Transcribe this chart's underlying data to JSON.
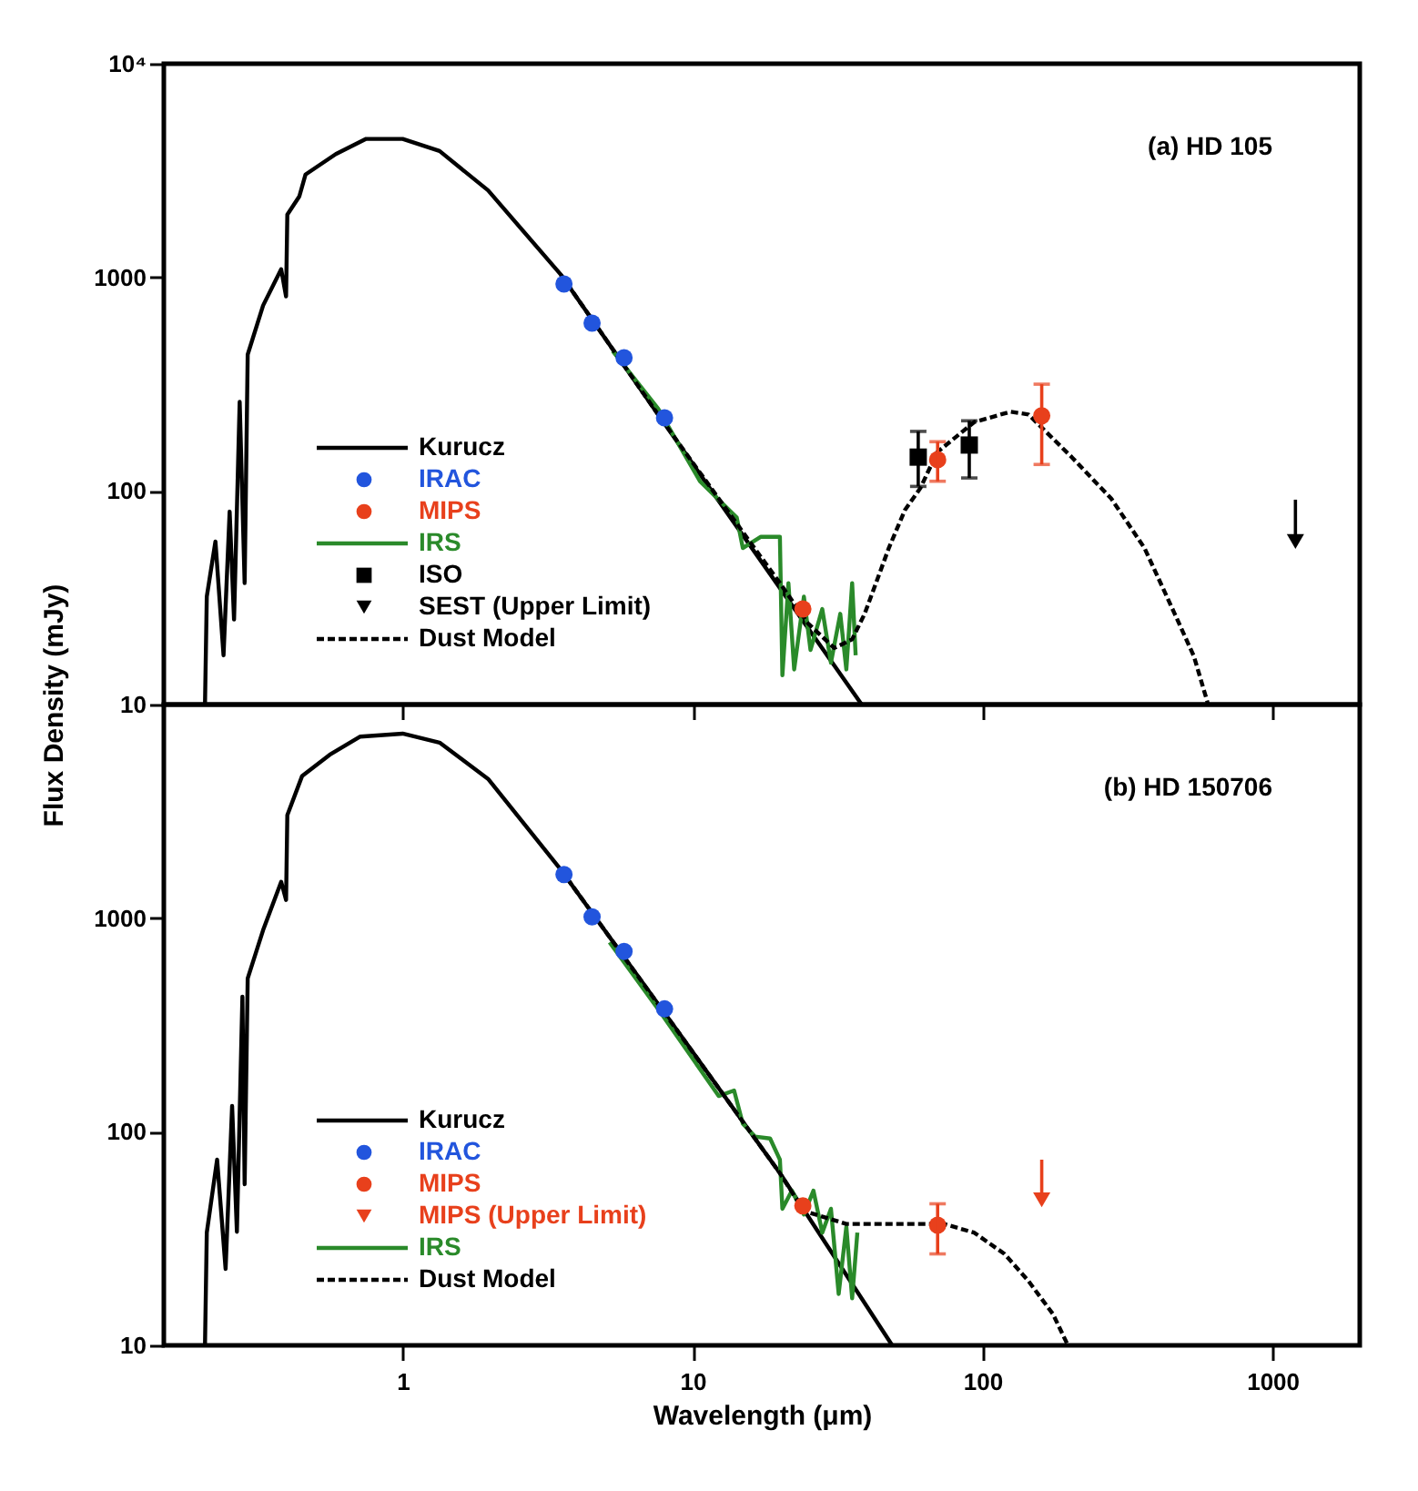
{
  "chart_data": [
    {
      "type": "line",
      "ylabel": "Flux Density (mJy)",
      "xlim": [
        0.15,
        2000
      ],
      "xticks": [
        1,
        10,
        100,
        1000
      ],
      "ylim": [
        10,
        10000
      ],
      "yticks": [
        10,
        100,
        1000,
        {
          "value": 10000,
          "label": "10⁴"
        }
      ],
      "log": "xy",
      "tick_labels": "y",
      "grid": false,
      "legend": "bottom left",
      "annotations": [
        "(a) HD 105"
      ],
      "series": [
        {
          "name": "Kurucz",
          "type": "line",
          "color": "#000000",
          "line_style": "solid",
          "x": [
            0.208,
            0.211,
            0.226,
            0.241,
            0.253,
            0.262,
            0.274,
            0.285,
            0.292,
            0.33,
            0.381,
            0.396,
            0.4,
            0.44,
            0.462,
            0.588,
            0.748,
            1,
            1.34,
            1.97,
            3.51,
            7.6,
            38.3
          ],
          "values": [
            10,
            32,
            58,
            17,
            80,
            25,
            261,
            37,
            435,
            738,
            1091,
            815,
            1967,
            2393,
            3027,
            3776,
            4447,
            4447,
            3903,
            2553,
            1030,
            228,
            10
          ]
        },
        {
          "name": "IRAC",
          "type": "scatter",
          "marker": "circle",
          "color": "#2255dd",
          "x": [
            3.6,
            4.5,
            5.8,
            8.0
          ],
          "values": [
            930,
            610,
            420,
            220
          ]
        },
        {
          "name": "MIPS",
          "type": "scatter",
          "marker": "circle",
          "color": "#e8401c",
          "x": [
            24,
            70,
            160
          ],
          "values": [
            28,
            140,
            225
          ],
          "errors": [
            null,
            [
              111,
              170
            ],
            [
              133,
              316
            ]
          ]
        },
        {
          "name": "IRS",
          "type": "line",
          "color": "#2a8a2a",
          "line_style": "solid",
          "x": [
            5.3,
            7.6,
            10.6,
            12.3,
            14.2,
            14.9,
            17.2,
            20,
            20.4,
            21.4,
            22.4,
            24.2,
            25.5,
            28,
            30,
            32.3,
            33.9,
            35.5,
            36.5
          ],
          "values": [
            452,
            243,
            111,
            91,
            75,
            54,
            61,
            61,
            13.7,
            37,
            14.6,
            32,
            18,
            28,
            15.7,
            26.6,
            14.6,
            37,
            17
          ]
        },
        {
          "name": "ISO",
          "type": "scatter",
          "marker": "square",
          "color": "#000000",
          "x": [
            60,
            90
          ],
          "values": [
            144,
            164
          ],
          "errors": [
            [
              105,
              190
            ],
            [
              115,
              213
            ]
          ]
        },
        {
          "name": "SEST (Upper Limit)",
          "type": "scatter",
          "marker": "triangle",
          "color": "#000000",
          "x": [
            1200
          ],
          "values": [
            58
          ],
          "errors": [
            [
              58,
              91
            ]
          ]
        },
        {
          "name": "Dust Model",
          "type": "line",
          "color": "#000000",
          "line_style": "dashed",
          "x": [
            3.51,
            7.6,
            12.3,
            20,
            25,
            30.8,
            35.5,
            39.2,
            47.5,
            54,
            61,
            69.8,
            93.6,
            125,
            144,
            203,
            278,
            362,
            460,
            536,
            600
          ],
          "values": [
            1030,
            228,
            92,
            37,
            24,
            18.4,
            20.2,
            26.6,
            54,
            81.5,
            103,
            152,
            210,
            235,
            228,
            144,
            92,
            54,
            26.6,
            16.8,
            10
          ]
        }
      ]
    },
    {
      "type": "line",
      "xlabel": "Wavelength (μm)",
      "xlim": [
        0.15,
        2000
      ],
      "xticks": [
        1,
        10,
        100,
        1000
      ],
      "ylim": [
        10,
        10000
      ],
      "yticks": [
        10,
        100,
        1000
      ],
      "log": "xy",
      "grid": false,
      "legend": "bottom left",
      "annotations": [
        "(b) HD 150706"
      ],
      "series": [
        {
          "name": "Kurucz",
          "type": "line",
          "color": "#000000",
          "line_style": "solid",
          "x": [
            0.208,
            0.211,
            0.229,
            0.245,
            0.258,
            0.268,
            0.28,
            0.285,
            0.292,
            0.33,
            0.381,
            0.396,
            0.4,
            0.45,
            0.56,
            0.714,
            1,
            1.34,
            1.97,
            3.51,
            8,
            20,
            48.8
          ],
          "values": [
            10,
            33.7,
            74,
            22.8,
            132,
            34,
            429,
            56.8,
            522,
            879,
            1479,
            1216,
            3034,
            4634,
            5818,
            7079,
            7310,
            6637,
            4487,
            1686,
            360,
            64,
            10
          ]
        },
        {
          "name": "IRAC",
          "type": "scatter",
          "marker": "circle",
          "color": "#2255dd",
          "x": [
            3.6,
            4.5,
            5.8,
            8.0
          ],
          "values": [
            1600,
            1014,
            699,
            376
          ]
        },
        {
          "name": "MIPS",
          "type": "scatter",
          "marker": "circle",
          "color": "#e8401c",
          "x": [
            24,
            70
          ],
          "values": [
            45,
            36.5
          ],
          "errors": [
            null,
            [
              26.8,
              46
            ]
          ]
        },
        {
          "name": "MIPS (Upper Limit)",
          "type": "scatter",
          "marker": "triangle",
          "color": "#e8401c",
          "x": [
            160
          ],
          "values": [
            48
          ],
          "errors": [
            [
              48,
              74
            ]
          ]
        },
        {
          "name": "IRS",
          "type": "line",
          "color": "#2a8a2a",
          "line_style": "solid",
          "x": [
            5.17,
            7.6,
            12.3,
            13.9,
            14.9,
            16.4,
            18.5,
            20,
            20.4,
            22,
            24.2,
            26.1,
            28,
            30,
            31.9,
            33.9,
            35.5,
            37
          ],
          "values": [
            771,
            376,
            147,
            156,
            109,
            95,
            93,
            74,
            43.6,
            53,
            41,
            53,
            33.7,
            43.6,
            17.4,
            35.9,
            16.6,
            33.7
          ]
        },
        {
          "name": "Dust Model",
          "type": "line",
          "color": "#000000",
          "line_style": "dashed",
          "x": [
            3.51,
            8,
            20,
            24.2,
            33.9,
            58.8,
            73.7,
            93.6,
            119,
            144,
            175,
            197
          ],
          "values": [
            1686,
            360,
            64,
            42.6,
            37,
            37,
            37,
            33.7,
            26.8,
            20,
            14,
            10
          ]
        }
      ]
    }
  ]
}
